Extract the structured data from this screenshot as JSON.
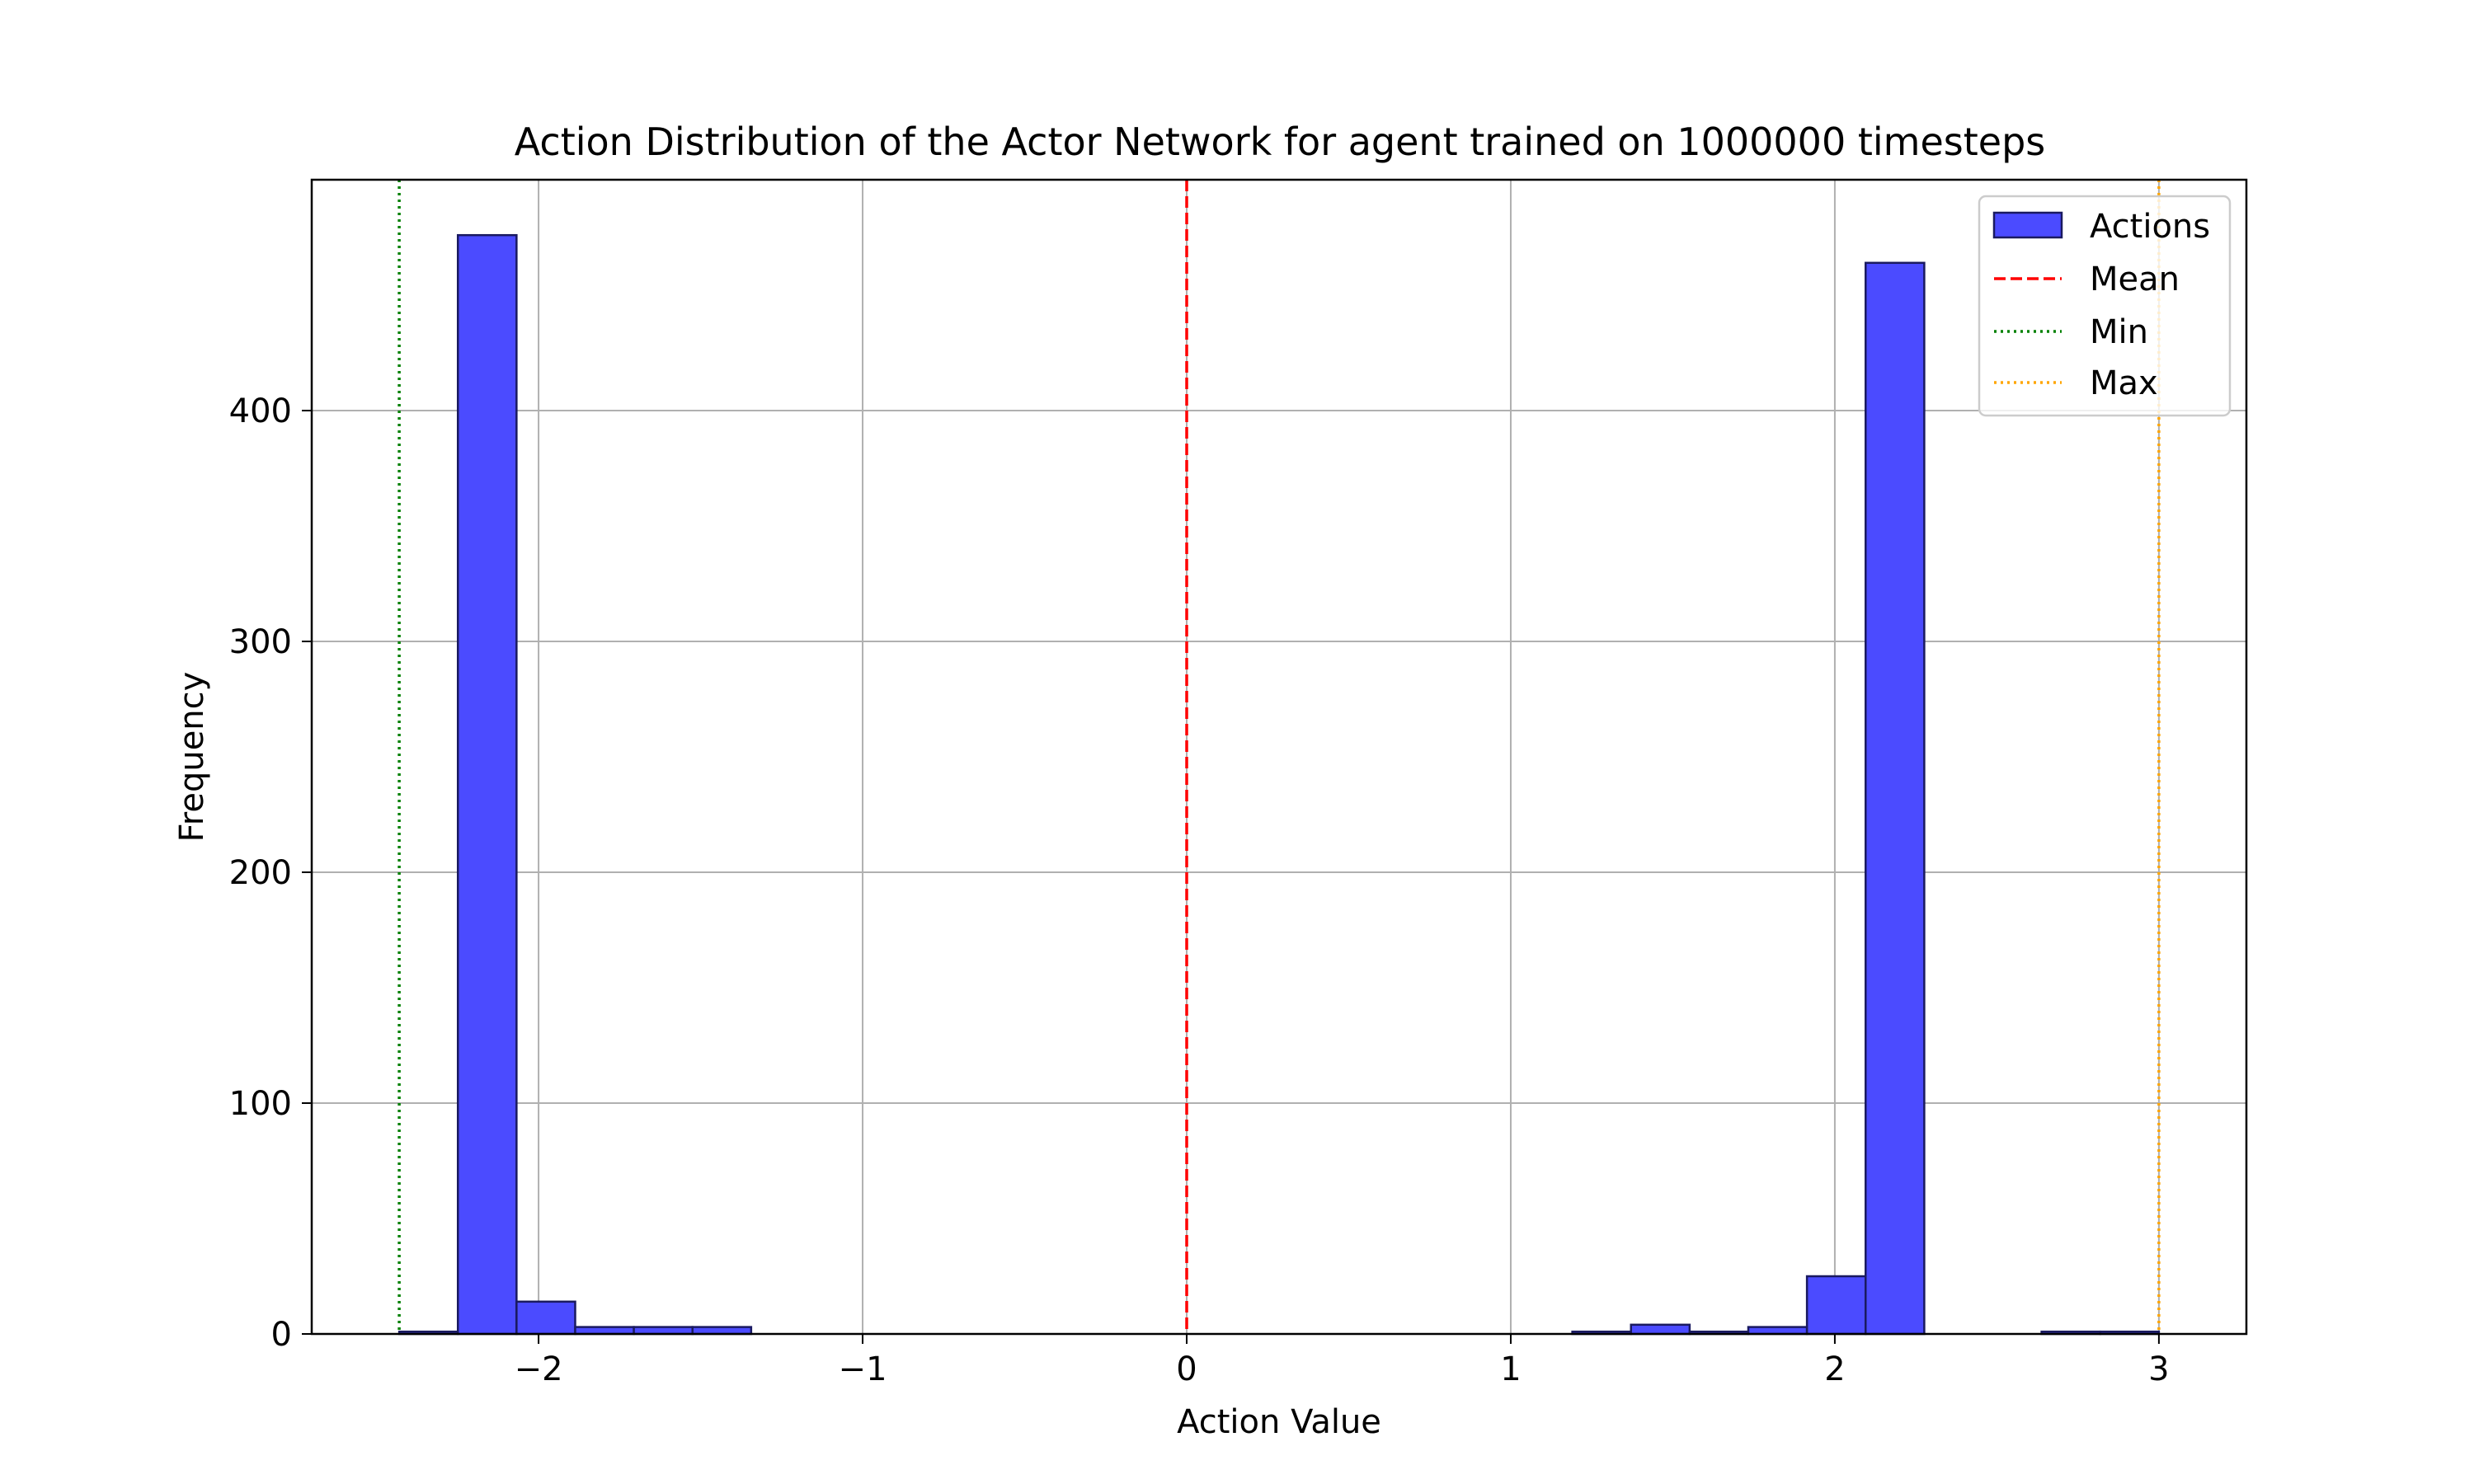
{
  "chart_data": {
    "type": "bar",
    "title": "Action Distribution of the Actor Network for agent trained on 1000000 timesteps",
    "xlabel": "Action Value",
    "ylabel": "Frequency",
    "xlim": [
      -2.7,
      3.27
    ],
    "ylim": [
      0,
      500
    ],
    "xticks": [
      -2,
      -1,
      0,
      1,
      2,
      3
    ],
    "xtick_labels": [
      "−2",
      "−1",
      "0",
      "1",
      "2",
      "3"
    ],
    "yticks": [
      0,
      100,
      200,
      300,
      400
    ],
    "ytick_labels": [
      "0",
      "100",
      "200",
      "300",
      "400"
    ],
    "grid": true,
    "legend_placement": "top-right",
    "bin_width": 0.181,
    "bins": [
      {
        "x0": -2.43,
        "count": 1
      },
      {
        "x0": -2.249,
        "count": 476
      },
      {
        "x0": -2.068,
        "count": 14
      },
      {
        "x0": -1.887,
        "count": 3
      },
      {
        "x0": -1.706,
        "count": 3
      },
      {
        "x0": -1.525,
        "count": 3
      },
      {
        "x0": -1.344,
        "count": 0
      },
      {
        "x0": -1.163,
        "count": 0
      },
      {
        "x0": -0.982,
        "count": 0
      },
      {
        "x0": -0.801,
        "count": 0
      },
      {
        "x0": -0.62,
        "count": 0
      },
      {
        "x0": -0.439,
        "count": 0
      },
      {
        "x0": -0.258,
        "count": 0
      },
      {
        "x0": -0.077,
        "count": 0
      },
      {
        "x0": 0.104,
        "count": 0
      },
      {
        "x0": 0.285,
        "count": 0
      },
      {
        "x0": 0.466,
        "count": 0
      },
      {
        "x0": 0.647,
        "count": 0
      },
      {
        "x0": 0.828,
        "count": 0
      },
      {
        "x0": 1.009,
        "count": 0
      },
      {
        "x0": 1.19,
        "count": 1
      },
      {
        "x0": 1.371,
        "count": 4
      },
      {
        "x0": 1.552,
        "count": 1
      },
      {
        "x0": 1.733,
        "count": 3
      },
      {
        "x0": 1.914,
        "count": 25
      },
      {
        "x0": 2.095,
        "count": 464
      },
      {
        "x0": 2.276,
        "count": 0
      },
      {
        "x0": 2.457,
        "count": 0
      },
      {
        "x0": 2.638,
        "count": 1
      },
      {
        "x0": 2.819,
        "count": 1
      }
    ],
    "vlines": [
      {
        "name": "Mean",
        "x": 0.0,
        "color": "#ff0000",
        "style": "dashed"
      },
      {
        "name": "Min",
        "x": -2.43,
        "color": "#008000",
        "style": "dotted"
      },
      {
        "name": "Max",
        "x": 3.0,
        "color": "#ffa500",
        "style": "dotted"
      }
    ],
    "series": [
      {
        "name": "Actions",
        "color": "#4b4bff",
        "edge": "#1a1a60"
      }
    ],
    "legend": [
      "Actions",
      "Mean",
      "Min",
      "Max"
    ]
  }
}
